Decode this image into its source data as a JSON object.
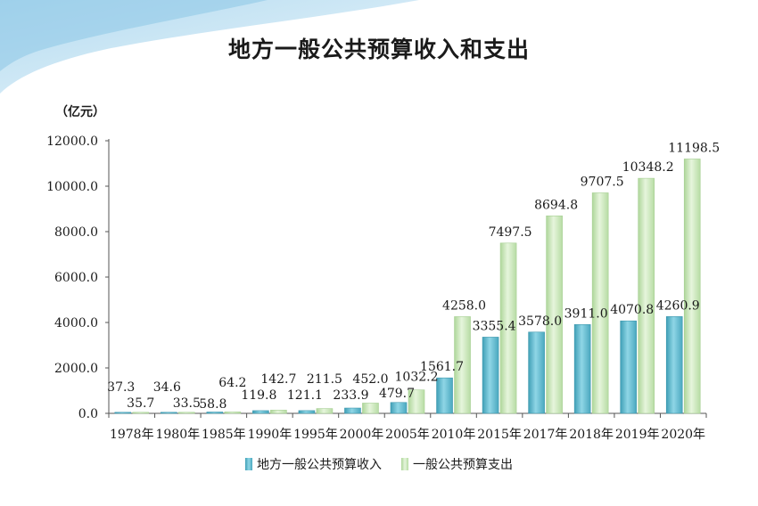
{
  "chart_data": {
    "type": "bar",
    "title": "地方一般公共预算收入和支出",
    "unit": "（亿元）",
    "categories": [
      "1978年",
      "1980年",
      "1985年",
      "1990年",
      "1995年",
      "2000年",
      "2005年",
      "2010年",
      "2015年",
      "2017年",
      "2018年",
      "2019年",
      "2020年"
    ],
    "series": [
      {
        "name": "地方一般公共预算收入",
        "color": "#5bb8cc",
        "values": [
          37.3,
          34.6,
          58.8,
          119.8,
          121.1,
          233.9,
          479.7,
          1561.7,
          3355.4,
          3578.0,
          3911.0,
          4070.8,
          4260.9
        ],
        "labels": [
          "37.3",
          "34.6",
          "58.8",
          "119.8",
          "121.1",
          "233.9",
          "479.7",
          "1561.7",
          "3355.4",
          "3578.0",
          "3911.0",
          "4070.8",
          "4260.9"
        ]
      },
      {
        "name": "一般公共预算支出",
        "color": "#c6e6b4",
        "values": [
          35.7,
          33.5,
          64.2,
          142.7,
          211.5,
          452.0,
          1032.2,
          4258.0,
          7497.5,
          8694.8,
          9707.5,
          10348.2,
          11198.5
        ],
        "labels": [
          "35.7",
          "33.5",
          "64.2",
          "142.7",
          "211.5",
          "452.0",
          "1032.2",
          "4258.0",
          "7497.5",
          "8694.8",
          "9707.5",
          "10348.2",
          "11198.5"
        ]
      }
    ],
    "y_ticks": [
      "0.0",
      "2000.0",
      "4000.0",
      "6000.0",
      "8000.0",
      "10000.0",
      "12000.0"
    ],
    "ylim": [
      0,
      12000
    ],
    "grid": false,
    "legend_position": "bottom"
  }
}
